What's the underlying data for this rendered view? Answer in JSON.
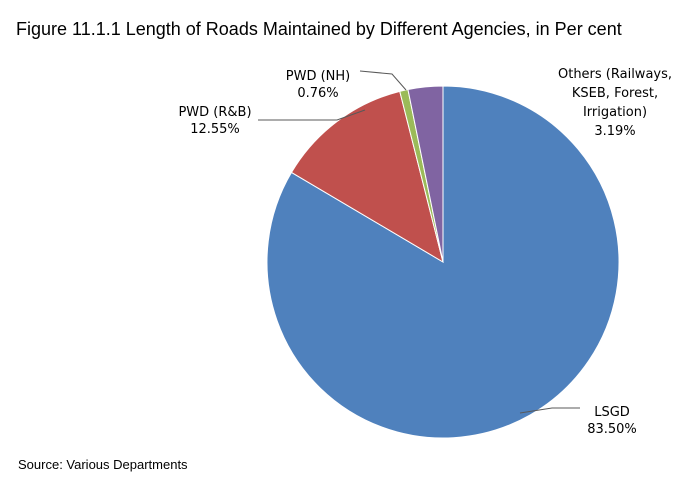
{
  "title": "Figure 11.1.1 Length of Roads Maintained by Different Agencies, in Per cent",
  "source": "Source: Various Departments",
  "chart_data": {
    "type": "pie",
    "title": "Figure 11.1.1 Length of Roads Maintained by Different Agencies, in Per cent",
    "start_angle_deg": 0,
    "direction": "clockwise",
    "slices": [
      {
        "category": "LSGD",
        "value": 83.5,
        "label_lines": [
          "LSGD",
          "83.50%"
        ],
        "color": "#4F81BD"
      },
      {
        "category": "PWD (R&B)",
        "value": 12.55,
        "label_lines": [
          "PWD (R&B)",
          "12.55%"
        ],
        "color": "#C0504D"
      },
      {
        "category": "PWD (NH)",
        "value": 0.76,
        "label_lines": [
          "PWD (NH)",
          "0.76%"
        ],
        "color": "#9BBB59"
      },
      {
        "category": "Others (Railways, KSEB, Forest, Irrigation)",
        "value": 3.19,
        "label_lines": [
          "Others (Railways,",
          "KSEB, Forest,",
          "Irrigation)",
          "3.19%"
        ],
        "color": "#8064A2"
      }
    ],
    "legend": "none",
    "leader_line_color": "#595959"
  }
}
